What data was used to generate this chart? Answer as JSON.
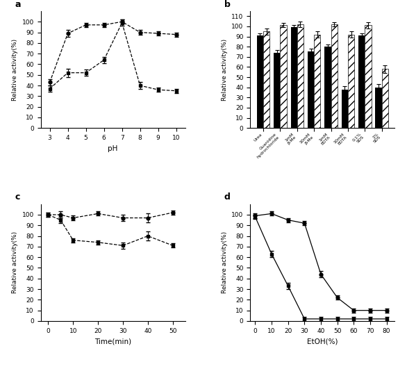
{
  "panel_a": {
    "label": "a",
    "line1": {
      "x": [
        3,
        4,
        5,
        6,
        7,
        8,
        9,
        10
      ],
      "y": [
        43,
        89,
        97,
        97,
        100,
        90,
        89,
        88
      ],
      "yerr": [
        3,
        3,
        2,
        2,
        2,
        2,
        2,
        2
      ],
      "marker": "o",
      "linestyle": "--"
    },
    "line2": {
      "x": [
        3,
        4,
        5,
        6,
        7,
        8,
        9,
        10
      ],
      "y": [
        37,
        52,
        52,
        64,
        99,
        40,
        36,
        35
      ],
      "yerr": [
        3,
        4,
        3,
        3,
        3,
        3,
        2,
        2
      ],
      "marker": "s",
      "linestyle": "--"
    },
    "xlabel": "pH",
    "ylabel": "Relative activity(%)",
    "ylim": [
      0,
      110
    ],
    "yticks": [
      0,
      10,
      20,
      30,
      40,
      50,
      60,
      70,
      80,
      90,
      100
    ]
  },
  "panel_b": {
    "label": "b",
    "categories": [
      "Urea",
      "Guanidine hydrochloride",
      "1mM β-Me",
      "10mM β-Me",
      "1mM EDTA",
      "10mM EDTA",
      "0.1% SDS",
      "1% SDS"
    ],
    "series1": [
      91,
      74,
      99,
      75,
      80,
      38,
      91,
      40
    ],
    "series2": [
      95,
      101,
      102,
      92,
      102,
      92,
      101,
      58
    ],
    "series1_err": [
      2,
      3,
      2,
      3,
      2,
      3,
      2,
      3
    ],
    "series2_err": [
      3,
      2,
      3,
      3,
      2,
      3,
      3,
      4
    ],
    "ylabel": "Relative activity(%)",
    "ylim": [
      0,
      115
    ],
    "yticks": [
      0,
      10,
      20,
      30,
      40,
      50,
      60,
      70,
      80,
      90,
      100,
      110
    ]
  },
  "panel_c": {
    "label": "c",
    "line1": {
      "x": [
        0,
        5,
        10,
        20,
        30,
        40,
        50
      ],
      "y": [
        100,
        100,
        97,
        101,
        97,
        97,
        102
      ],
      "yerr": [
        2,
        3,
        2,
        2,
        3,
        4,
        2
      ],
      "marker": "o",
      "linestyle": "--"
    },
    "line2": {
      "x": [
        0,
        5,
        10,
        20,
        30,
        40,
        50
      ],
      "y": [
        100,
        95,
        76,
        74,
        71,
        80,
        71
      ],
      "yerr": [
        2,
        3,
        2,
        2,
        3,
        4,
        2
      ],
      "marker": "s",
      "linestyle": "--"
    },
    "xlabel": "Time(min)",
    "ylabel": "Relative activity(%)",
    "ylim": [
      0,
      110
    ],
    "yticks": [
      0,
      10,
      20,
      30,
      40,
      50,
      60,
      70,
      80,
      90,
      100
    ],
    "xticks": [
      0,
      10,
      20,
      30,
      40,
      50
    ]
  },
  "panel_d": {
    "label": "d",
    "line1": {
      "x": [
        0,
        10,
        20,
        30,
        40,
        50,
        60,
        70,
        80
      ],
      "y": [
        99,
        101,
        95,
        92,
        44,
        22,
        10,
        10,
        10
      ],
      "yerr": [
        2,
        2,
        2,
        2,
        3,
        2,
        2,
        2,
        2
      ],
      "marker": "o",
      "linestyle": "-"
    },
    "line2": {
      "x": [
        0,
        10,
        20,
        30,
        40,
        50,
        60,
        70,
        80
      ],
      "y": [
        98,
        63,
        33,
        2,
        2,
        2,
        2,
        2,
        2
      ],
      "yerr": [
        2,
        3,
        3,
        2,
        2,
        2,
        2,
        2,
        2
      ],
      "marker": "s",
      "linestyle": "-"
    },
    "xlabel": "EtOH(%)",
    "ylabel": "Relative activity(%)",
    "ylim": [
      0,
      110
    ],
    "yticks": [
      0,
      10,
      20,
      30,
      40,
      50,
      60,
      70,
      80,
      90,
      100
    ],
    "xticks": [
      0,
      10,
      20,
      30,
      40,
      50,
      60,
      70,
      80
    ]
  }
}
